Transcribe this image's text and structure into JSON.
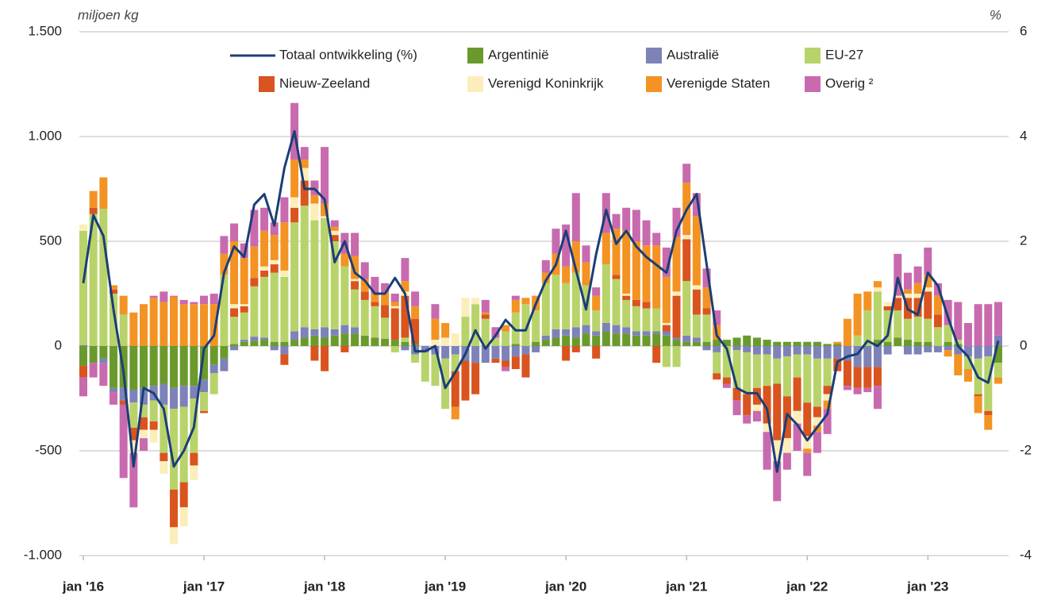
{
  "chart_data": {
    "type": "bar",
    "stacked": true,
    "y_label": "miljoen kg",
    "y2_label": "%",
    "categories": [
      "jan '16",
      null,
      null,
      null,
      null,
      null,
      null,
      null,
      null,
      null,
      null,
      null,
      "jan '17",
      null,
      null,
      null,
      null,
      null,
      null,
      null,
      null,
      null,
      null,
      null,
      "jan '18",
      null,
      null,
      null,
      null,
      null,
      null,
      null,
      null,
      null,
      null,
      null,
      "jan '19",
      null,
      null,
      null,
      null,
      null,
      null,
      null,
      null,
      null,
      null,
      null,
      "jan '20",
      null,
      null,
      null,
      null,
      null,
      null,
      null,
      null,
      null,
      null,
      null,
      "jan '21",
      null,
      null,
      null,
      null,
      null,
      null,
      null,
      null,
      null,
      null,
      null,
      "jan '22",
      null,
      null,
      null,
      null,
      null,
      null,
      null,
      null,
      null,
      null,
      null,
      "jan '23",
      null,
      null,
      null,
      null,
      null,
      null,
      null
    ],
    "ylim": [
      -1000,
      1500
    ],
    "yticks": [
      {
        "value": -1000,
        "label": "-1.000"
      },
      -500,
      0,
      500,
      {
        "value": 1000,
        "label": "1.000"
      },
      {
        "value": 1500,
        "label": "1.500"
      }
    ],
    "y2lim": [
      -4,
      6
    ],
    "y2ticks": [
      -4,
      -2,
      0,
      2,
      4,
      6
    ],
    "grid": true,
    "series": [
      {
        "name": "Totaal ontwikkeling (%)",
        "type": "line",
        "axis": "y2",
        "color": "#1b3e76",
        "values": [
          1.2,
          2.5,
          2.1,
          0.7,
          -0.5,
          -2.3,
          -0.8,
          -0.9,
          -1.2,
          -2.3,
          -2.0,
          -1.55,
          -0.05,
          0.2,
          1.4,
          1.9,
          1.7,
          2.7,
          2.9,
          2.3,
          3.4,
          4.1,
          3.0,
          3.0,
          2.8,
          1.6,
          2.0,
          1.4,
          1.25,
          1.0,
          1.0,
          1.3,
          1.0,
          -0.1,
          -0.1,
          0.0,
          -0.8,
          -0.5,
          -0.15,
          0.3,
          -0.05,
          0.2,
          0.5,
          0.3,
          0.3,
          0.8,
          1.25,
          1.55,
          2.2,
          1.45,
          0.7,
          1.75,
          2.6,
          1.95,
          2.2,
          1.9,
          1.7,
          1.55,
          1.4,
          2.2,
          2.6,
          2.9,
          1.55,
          0.2,
          -0.05,
          -0.8,
          -0.9,
          -0.9,
          -1.2,
          -2.4,
          -1.3,
          -1.5,
          -1.8,
          -1.55,
          -1.3,
          -0.3,
          -0.2,
          -0.15,
          0.1,
          0.0,
          0.2,
          1.3,
          0.7,
          0.6,
          1.4,
          1.15,
          0.55,
          0.0,
          -0.2,
          -0.6,
          -0.7,
          0.1
        ]
      },
      {
        "name": "Argentinië",
        "color": "#6a9a2c",
        "values": [
          -95,
          -80,
          -60,
          -200,
          -200,
          -210,
          -200,
          -190,
          -180,
          -200,
          -190,
          -190,
          -160,
          -90,
          -60,
          10,
          20,
          25,
          30,
          20,
          20,
          30,
          40,
          50,
          40,
          50,
          60,
          60,
          50,
          40,
          35,
          30,
          20,
          10,
          0,
          0,
          0,
          0,
          0,
          0,
          0,
          0,
          0,
          10,
          0,
          20,
          30,
          40,
          50,
          40,
          60,
          50,
          70,
          60,
          60,
          50,
          50,
          60,
          50,
          30,
          20,
          20,
          20,
          30,
          30,
          40,
          50,
          40,
          30,
          20,
          20,
          20,
          20,
          20,
          10,
          10,
          0,
          0,
          0,
          30,
          20,
          40,
          30,
          20,
          20,
          0,
          20,
          10,
          0,
          0,
          0,
          -80
        ]
      },
      {
        "name": "Australië",
        "color": "#7d83b8",
        "values": [
          5,
          0,
          -20,
          -20,
          -60,
          -60,
          -80,
          -70,
          -100,
          -100,
          -100,
          -60,
          -60,
          -40,
          -60,
          -20,
          10,
          20,
          10,
          -20,
          -40,
          40,
          50,
          30,
          50,
          30,
          40,
          30,
          0,
          0,
          0,
          0,
          -20,
          -40,
          -30,
          -40,
          -60,
          -40,
          -70,
          -80,
          -80,
          -60,
          -70,
          -50,
          -40,
          -30,
          20,
          40,
          30,
          50,
          40,
          20,
          40,
          40,
          30,
          20,
          20,
          10,
          20,
          10,
          30,
          20,
          -20,
          -30,
          0,
          -20,
          -30,
          -40,
          -40,
          -60,
          -50,
          -40,
          -40,
          -60,
          -60,
          -60,
          -70,
          -100,
          -100,
          -100,
          -40,
          0,
          -40,
          -40,
          -30,
          -30,
          -20,
          -40,
          -50,
          -60,
          -50,
          50
        ]
      },
      {
        "name": "EU-27",
        "color": "#b8d36a",
        "values": [
          545,
          630,
          655,
          250,
          150,
          -120,
          -60,
          -100,
          -230,
          -385,
          -360,
          -260,
          -90,
          -100,
          340,
          130,
          130,
          240,
          290,
          330,
          310,
          520,
          580,
          520,
          520,
          420,
          280,
          180,
          170,
          150,
          100,
          -30,
          20,
          -40,
          -140,
          -150,
          -240,
          -80,
          140,
          200,
          130,
          40,
          70,
          150,
          200,
          150,
          250,
          260,
          220,
          260,
          190,
          100,
          280,
          220,
          130,
          120,
          110,
          110,
          -100,
          -100,
          260,
          110,
          130,
          -100,
          -150,
          -180,
          -200,
          -160,
          -150,
          -120,
          -190,
          -110,
          -230,
          -230,
          -130,
          0,
          0,
          50,
          170,
          230,
          150,
          130,
          100,
          120,
          110,
          90,
          80,
          20,
          -60,
          -170,
          -260,
          -70
        ]
      },
      {
        "name": "Nieuw-Zeeland",
        "color": "#d9541e",
        "values": [
          -55,
          30,
          0,
          20,
          -20,
          -60,
          -60,
          -40,
          -40,
          -180,
          -120,
          -60,
          -10,
          0,
          0,
          40,
          30,
          40,
          30,
          40,
          -50,
          70,
          120,
          -70,
          -120,
          30,
          -30,
          40,
          40,
          20,
          60,
          150,
          200,
          120,
          0,
          0,
          0,
          -170,
          -190,
          -150,
          20,
          -20,
          -30,
          -60,
          -110,
          0,
          0,
          0,
          -70,
          -30,
          0,
          -60,
          0,
          20,
          20,
          30,
          30,
          -80,
          30,
          200,
          200,
          120,
          30,
          -30,
          -30,
          -60,
          -100,
          -80,
          -180,
          -270,
          -200,
          -160,
          -160,
          -50,
          -40,
          -60,
          -120,
          -100,
          -100,
          -90,
          20,
          60,
          100,
          90,
          130,
          60,
          0,
          0,
          0,
          -10,
          -20,
          0
        ]
      },
      {
        "name": "Verenigd Koninkrijk",
        "color": "#fbeebb",
        "values": [
          30,
          0,
          0,
          0,
          0,
          -60,
          -40,
          -60,
          -60,
          -80,
          -90,
          -70,
          0,
          0,
          0,
          20,
          10,
          0,
          20,
          20,
          30,
          50,
          60,
          80,
          10,
          20,
          0,
          10,
          0,
          0,
          0,
          10,
          20,
          0,
          0,
          30,
          40,
          60,
          90,
          30,
          0,
          0,
          0,
          0,
          0,
          0,
          0,
          0,
          0,
          0,
          0,
          0,
          0,
          0,
          10,
          0,
          0,
          0,
          10,
          20,
          20,
          20,
          0,
          0,
          0,
          0,
          0,
          -30,
          -40,
          -100,
          -70,
          -60,
          -60,
          -40,
          -30,
          0,
          0,
          0,
          0,
          20,
          20,
          10,
          20,
          20,
          20,
          0,
          0,
          0,
          0,
          0,
          0,
          0
        ]
      },
      {
        "name": "Verenigde Staten",
        "color": "#f39323",
        "values": [
          0,
          80,
          150,
          20,
          90,
          160,
          200,
          230,
          210,
          235,
          200,
          200,
          200,
          200,
          100,
          300,
          220,
          150,
          170,
          120,
          230,
          180,
          40,
          40,
          60,
          20,
          60,
          110,
          60,
          40,
          60,
          20,
          50,
          60,
          0,
          100,
          70,
          -60,
          0,
          0,
          10,
          0,
          30,
          60,
          30,
          70,
          50,
          100,
          80,
          150,
          110,
          70,
          150,
          220,
          300,
          280,
          270,
          300,
          220,
          260,
          250,
          330,
          100,
          70,
          0,
          0,
          0,
          0,
          0,
          0,
          0,
          0,
          -20,
          -30,
          -40,
          10,
          130,
          200,
          90,
          30,
          0,
          0,
          20,
          50,
          60,
          90,
          -30,
          -100,
          -60,
          -80,
          -70,
          -30
        ]
      },
      {
        "name": "Overig ²",
        "color": "#c86aae",
        "values": [
          -90,
          -70,
          -110,
          -60,
          -350,
          -260,
          -60,
          10,
          50,
          5,
          20,
          10,
          40,
          50,
          85,
          85,
          70,
          175,
          110,
          60,
          120,
          270,
          60,
          70,
          270,
          30,
          100,
          110,
          80,
          80,
          45,
          40,
          110,
          70,
          0,
          70,
          0,
          0,
          0,
          0,
          60,
          50,
          -20,
          20,
          0,
          0,
          60,
          120,
          200,
          230,
          80,
          40,
          190,
          70,
          110,
          150,
          120,
          60,
          140,
          140,
          90,
          110,
          90,
          70,
          -20,
          -70,
          -40,
          -50,
          -180,
          -190,
          -80,
          -130,
          -110,
          -100,
          -120,
          0,
          -20,
          -30,
          -20,
          -110,
          0,
          200,
          80,
          80,
          130,
          60,
          120,
          180,
          110,
          200,
          200,
          160
        ]
      }
    ]
  }
}
